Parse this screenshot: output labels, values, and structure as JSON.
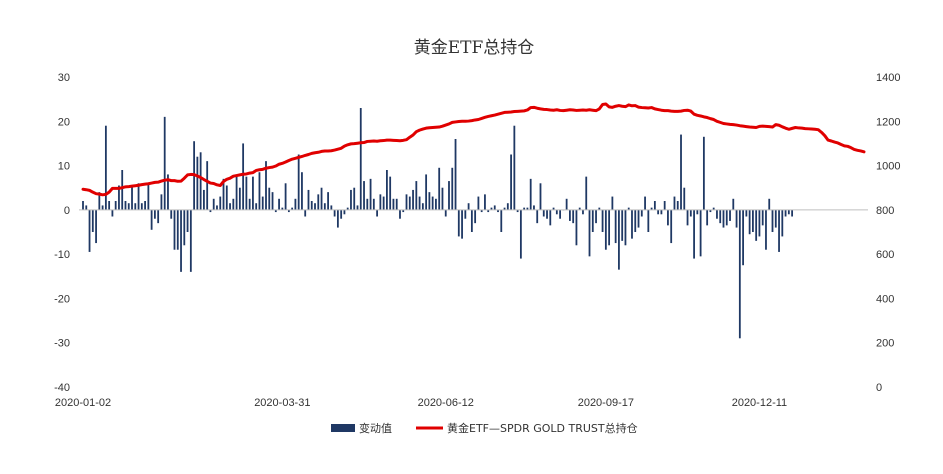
{
  "chart_data": {
    "type": "bar+line",
    "title": "黄金ETF总持仓",
    "legend_position": "bottom",
    "grid": false,
    "colors": {
      "bars": "#1f3864",
      "line": "#e00000"
    },
    "left_axis": {
      "min": -40,
      "max": 30,
      "ticks": [
        "30",
        "20",
        "10",
        "0",
        "-10",
        "-20",
        "-30",
        "-40"
      ]
    },
    "right_axis": {
      "min": 0,
      "max": 1400,
      "ticks": [
        "1400",
        "1200",
        "1000",
        "800",
        "600",
        "400",
        "200",
        "0"
      ]
    },
    "x_labels": [
      "2020-01-02",
      "2020-03-31",
      "2020-06-12",
      "2020-09-17",
      "2020-12-11"
    ],
    "x_label_index": [
      0,
      61,
      111,
      160,
      207
    ],
    "n_points": 240,
    "series": [
      {
        "name": "变动值",
        "kind": "bar",
        "axis": "left",
        "values": [
          2,
          1,
          -9.5,
          -5,
          -7.5,
          4,
          1,
          19,
          2,
          -1.5,
          2,
          5.5,
          9,
          2,
          1.5,
          5.5,
          1.5,
          6,
          1.5,
          2,
          6,
          -4.5,
          -2,
          -3,
          3.5,
          21,
          8,
          -2,
          -9,
          -9,
          -14,
          -8,
          -5,
          -14,
          15.5,
          12,
          13,
          4.5,
          11,
          -0.5,
          2.5,
          1,
          3,
          7,
          5.5,
          1.5,
          2.5,
          8,
          5,
          15,
          7.5,
          2.5,
          7.5,
          1.5,
          8.5,
          3,
          11,
          5,
          4,
          -0.5,
          2.5,
          0.5,
          6,
          -0.5,
          0.5,
          2.5,
          12.5,
          8.5,
          -1.5,
          4.5,
          2,
          1.5,
          3.5,
          5,
          1.5,
          4,
          1,
          -1.5,
          -4,
          -2,
          -1,
          0.5,
          4.5,
          5,
          1,
          23,
          6.5,
          2.5,
          7,
          2.5,
          -1.5,
          3.5,
          3,
          9,
          7.5,
          2.5,
          2.5,
          -2,
          -0.5,
          3.5,
          3,
          4.5,
          6.5,
          3,
          1.5,
          8,
          4,
          3,
          2.5,
          9.5,
          5,
          -1.5,
          6.5,
          9.5,
          16,
          -6,
          -6.5,
          -2,
          1.5,
          -5,
          -3,
          3,
          -0.5,
          3.5,
          -0.5,
          0.5,
          1,
          -0.5,
          -5,
          0.5,
          1.5,
          12.5,
          19,
          -0.5,
          -11,
          0.5,
          0.5,
          7,
          1,
          -3,
          6,
          -1.5,
          -2,
          -3.5,
          0.5,
          -1,
          -2,
          0,
          2.5,
          -2.5,
          -3,
          -8,
          0.5,
          -1,
          7.5,
          -10.5,
          -5,
          -3,
          0.5,
          -5,
          -9,
          -8,
          3,
          -7.5,
          -13.5,
          -7,
          -8,
          0.5,
          -6.5,
          -5,
          -4,
          -1.5,
          3,
          -5,
          0.5,
          2,
          -1,
          -1,
          2,
          -3.5,
          -7.5,
          3,
          2,
          17,
          5,
          -3.5,
          -1.5,
          -11,
          -1,
          -10.5,
          16.5,
          -3.5,
          -0.5,
          0.5,
          -2,
          -3,
          -4,
          -3.5,
          -2.5,
          2.5,
          -4,
          -29,
          -12.5,
          -1.5,
          -5.5,
          -5,
          -7,
          -6,
          -3.5,
          -9,
          2.5,
          -5,
          -4,
          -9.5,
          -6,
          -1.5,
          -1,
          -1.5
        ],
        "display": [
          0,
          0,
          0,
          0,
          0,
          0,
          0,
          0,
          0,
          0,
          0,
          0,
          0,
          0,
          0,
          0,
          0,
          0,
          0,
          0,
          0,
          0,
          0,
          0,
          0,
          0,
          0,
          0,
          0,
          0,
          0,
          0,
          0,
          0,
          0,
          0,
          0,
          0,
          0,
          0,
          0,
          0,
          0,
          0,
          0,
          0,
          0,
          0,
          0,
          0,
          0,
          0,
          0,
          0,
          0,
          0,
          0,
          0,
          0,
          0,
          0,
          0,
          0,
          0,
          0,
          0,
          0,
          0,
          0,
          0,
          0,
          0,
          0,
          0,
          0,
          0,
          0,
          0,
          0,
          0,
          0,
          0,
          0,
          0,
          0,
          0,
          0,
          0,
          0,
          0,
          0,
          0,
          0,
          0,
          0,
          0,
          0,
          0,
          0,
          0,
          0,
          0,
          0,
          0,
          0,
          0,
          0,
          0,
          0,
          0,
          0,
          0,
          0,
          0,
          0,
          0,
          0,
          0,
          0,
          0,
          0,
          0,
          0,
          0,
          0,
          0,
          0,
          0,
          0,
          0,
          0,
          0,
          0,
          0,
          0,
          0,
          0,
          0,
          0,
          0,
          0,
          0,
          0,
          0,
          0,
          0,
          0,
          0,
          0,
          0,
          0,
          0,
          0,
          0,
          0,
          0,
          0,
          0,
          0,
          0,
          0,
          0,
          0,
          0,
          0,
          0,
          0,
          0,
          0,
          0,
          0,
          0,
          0,
          0,
          0,
          0,
          0,
          0,
          0,
          0,
          0,
          0,
          0,
          0,
          0,
          0,
          0,
          0,
          0,
          0,
          0,
          0,
          0,
          0,
          0,
          0,
          0,
          0,
          0,
          0,
          0,
          0,
          0,
          0,
          0,
          0,
          0,
          0,
          0,
          0,
          0,
          0,
          0,
          0,
          0,
          0,
          0,
          0,
          0,
          0,
          0,
          0,
          0,
          0,
          0,
          0,
          0,
          0,
          0,
          0,
          0,
          0,
          0,
          0,
          0,
          0,
          0,
          0,
          0,
          0
        ]
      },
      {
        "name": "黄金ETF—SPDR GOLD TRUST总持仓",
        "kind": "line",
        "axis": "right",
        "values": [
          893,
          891,
          888,
          880,
          873,
          871,
          868,
          870,
          880,
          897,
          897,
          897,
          900,
          904,
          905,
          907,
          909,
          911,
          914,
          916,
          918,
          921,
          924,
          925,
          930,
          934,
          936,
          932,
          932,
          929,
          930,
          943,
          958,
          960,
          959,
          953,
          946,
          937,
          929,
          921,
          919,
          913,
          910,
          928,
          938,
          943,
          952,
          955,
          958,
          961,
          962,
          966,
          968,
          978,
          981,
          983,
          988,
          991,
          993,
          998,
          1006,
          1010,
          1016,
          1023,
          1029,
          1033,
          1037,
          1041,
          1046,
          1050,
          1055,
          1058,
          1060,
          1064,
          1066,
          1066,
          1067,
          1070,
          1074,
          1078,
          1088,
          1094,
          1098,
          1099,
          1101,
          1103,
          1104,
          1109,
          1110,
          1111,
          1110,
          1112,
          1113,
          1115,
          1115,
          1114,
          1113,
          1112,
          1114,
          1117,
          1128,
          1138,
          1153,
          1160,
          1165,
          1169,
          1171,
          1172,
          1173,
          1174,
          1178,
          1183,
          1188,
          1195,
          1197,
          1199,
          1200,
          1200,
          1201,
          1203,
          1206,
          1208,
          1213,
          1218,
          1222,
          1225,
          1228,
          1232,
          1236,
          1240,
          1241,
          1242,
          1244,
          1245,
          1246,
          1247,
          1251,
          1262,
          1263,
          1259,
          1256,
          1254,
          1253,
          1251,
          1250,
          1252,
          1249,
          1248,
          1250,
          1252,
          1251,
          1249,
          1250,
          1251,
          1250,
          1252,
          1250,
          1248,
          1256,
          1276,
          1278,
          1265,
          1263,
          1268,
          1271,
          1268,
          1266,
          1274,
          1270,
          1271,
          1264,
          1262,
          1261,
          1260,
          1262,
          1256,
          1253,
          1250,
          1248,
          1248,
          1246,
          1245,
          1245,
          1246,
          1249,
          1250,
          1246,
          1232,
          1227,
          1224,
          1220,
          1217,
          1212,
          1208,
          1200,
          1195,
          1190,
          1188,
          1186,
          1185,
          1183,
          1180,
          1178,
          1176,
          1174,
          1173,
          1172,
          1177,
          1178,
          1177,
          1176,
          1174,
          1185,
          1182,
          1175,
          1169,
          1164,
          1168,
          1172,
          1170,
          1169,
          1167,
          1166,
          1165,
          1164,
          1162,
          1150,
          1135,
          1115,
          1111,
          1106,
          1102,
          1095,
          1089,
          1087,
          1081,
          1073,
          1069,
          1066,
          1062
        ]
      }
    ]
  }
}
